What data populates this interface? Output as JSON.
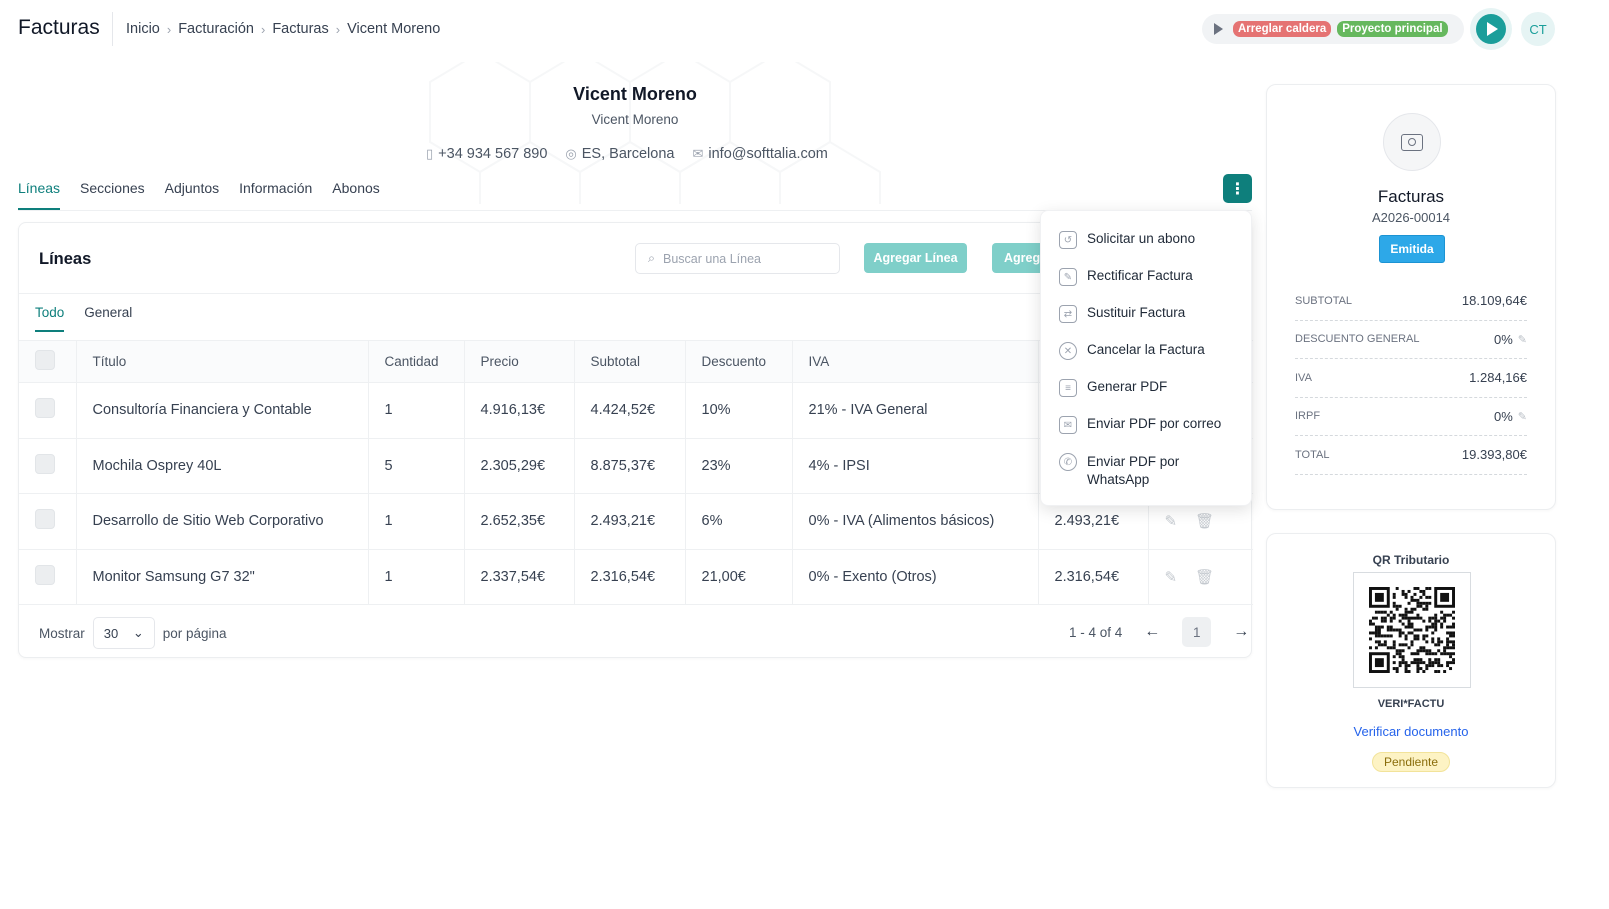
{
  "app": {
    "title": "Facturas"
  },
  "breadcrumb": [
    "Inicio",
    "Facturación",
    "Facturas",
    "Vicent Moreno"
  ],
  "timer": {
    "tag_task": "Arreglar caldera",
    "tag_project": "Proyecto principal"
  },
  "user": {
    "initials": "CT"
  },
  "profile": {
    "name": "Vicent Moreno",
    "subtitle": "Vicent Moreno",
    "phone": "+34 934 567 890",
    "location": "ES, Barcelona",
    "email": "info@softtalia.com"
  },
  "tabs": [
    "Líneas",
    "Secciones",
    "Adjuntos",
    "Información",
    "Abonos"
  ],
  "lines_card": {
    "title": "Líneas",
    "search_placeholder": "Buscar una Línea",
    "add_line_label": "Agregar Línea",
    "add_more_label": "Agrega",
    "subtabs": [
      "Todo",
      "General"
    ],
    "columns": [
      "Título",
      "Cantidad",
      "Precio",
      "Subtotal",
      "Descuento",
      "IVA",
      "",
      ""
    ],
    "rows": [
      {
        "titulo": "Consultoría Financiera y Contable",
        "cantidad": "1",
        "precio": "4.916,13€",
        "subtotal": "4.424,52€",
        "descuento": "10%",
        "iva": "21% - IVA General",
        "total": ""
      },
      {
        "titulo": "Mochila Osprey 40L",
        "cantidad": "5",
        "precio": "2.305,29€",
        "subtotal": "8.875,37€",
        "descuento": "23%",
        "iva": "4% - IPSI",
        "total": ""
      },
      {
        "titulo": "Desarrollo de Sitio Web Corporativo",
        "cantidad": "1",
        "precio": "2.652,35€",
        "subtotal": "2.493,21€",
        "descuento": "6%",
        "iva": "0% - IVA (Alimentos básicos)",
        "total": "2.493,21€"
      },
      {
        "titulo": "Monitor Samsung G7 32\"",
        "cantidad": "1",
        "precio": "2.337,54€",
        "subtotal": "2.316,54€",
        "descuento": "21,00€",
        "iva": "0% - Exento (Otros)",
        "total": "2.316,54€"
      }
    ],
    "show_label": "Mostrar",
    "per_page_value": "30",
    "per_page_label": "por página",
    "range_label": "1 - 4 of 4",
    "current_page": "1"
  },
  "menu": [
    "Solicitar un abono",
    "Rectificar Factura",
    "Sustituir Factura",
    "Cancelar la Factura",
    "Generar PDF",
    "Enviar PDF por correo",
    "Enviar PDF por WhatsApp"
  ],
  "summary": {
    "title": "Facturas",
    "number": "A2026-00014",
    "status": "Emitida",
    "totals": [
      {
        "label": "SUBTOTAL",
        "value": "18.109,64€",
        "editable": false
      },
      {
        "label": "DESCUENTO GENERAL",
        "value": "0%",
        "editable": true
      },
      {
        "label": "IVA",
        "value": "1.284,16€",
        "editable": false
      },
      {
        "label": "IRPF",
        "value": "0%",
        "editable": true
      },
      {
        "label": "TOTAL",
        "value": "19.393,80€",
        "editable": false
      }
    ]
  },
  "qr": {
    "title": "QR Tributario",
    "brand": "VERI*FACTU",
    "verify_link": "Verificar documento",
    "status": "Pendiente"
  },
  "colors": {
    "primary": "#0e7f7c",
    "accent_light": "#7fcfc9",
    "status_blue": "#2da8e8",
    "tag_red": "#e57373",
    "tag_green": "#66b85e"
  }
}
